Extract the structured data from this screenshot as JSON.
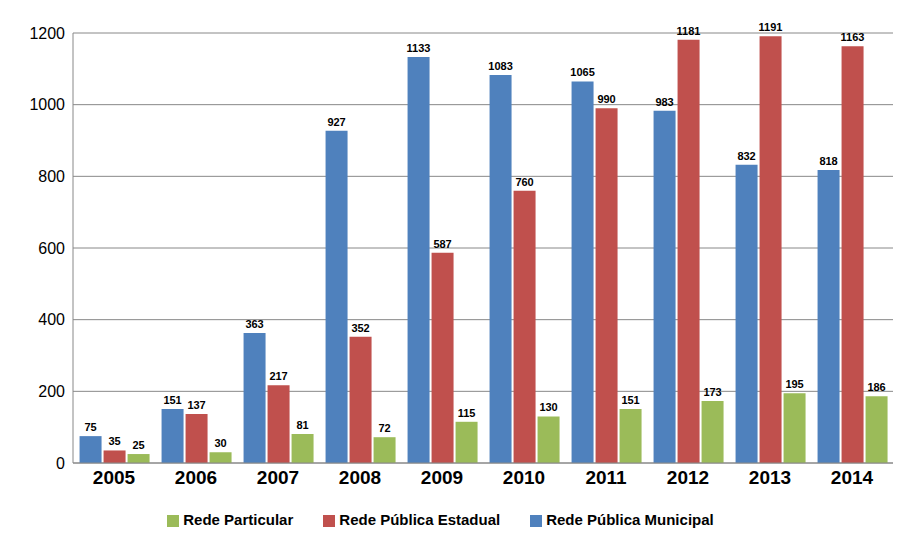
{
  "chart_data": {
    "type": "bar",
    "categories": [
      "2005",
      "2006",
      "2007",
      "2008",
      "2009",
      "2010",
      "2011",
      "2012",
      "2013",
      "2014"
    ],
    "series": [
      {
        "name": "Rede Pública Municipal",
        "color": "#4f81bd",
        "values": [
          75,
          151,
          363,
          927,
          1133,
          1083,
          1065,
          983,
          832,
          818
        ]
      },
      {
        "name": "Rede Pública Estadual",
        "color": "#c0504d",
        "values": [
          35,
          137,
          217,
          352,
          587,
          760,
          990,
          1181,
          1191,
          1163
        ]
      },
      {
        "name": "Rede Particular",
        "color": "#9bbb59",
        "values": [
          25,
          30,
          81,
          72,
          115,
          130,
          151,
          173,
          195,
          186
        ]
      }
    ],
    "ylim": [
      0,
      1200
    ],
    "yticks": [
      0,
      200,
      400,
      600,
      800,
      1000,
      1200
    ],
    "grid": true,
    "legend": "bottom",
    "data_labels": true
  }
}
